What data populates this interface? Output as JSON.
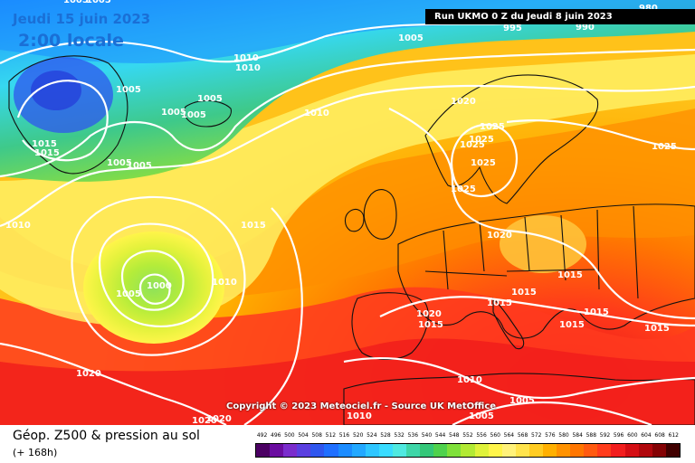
{
  "title": {
    "date": "Jeudi 15 juin 2023",
    "time": "2:00 locale",
    "run": "Run UKMO 0 Z du Jeudi 8 juin 2023"
  },
  "copyright": "Copyright © 2023 Meteociel.fr - Source UK MetOffice",
  "legend": {
    "title": "Géop. Z500 & pression au sol",
    "subtitle": "(+ 168h)",
    "scale_values": [
      "492",
      "496",
      "500",
      "504",
      "508",
      "512",
      "516",
      "520",
      "524",
      "528",
      "532",
      "536",
      "540",
      "544",
      "548",
      "552",
      "556",
      "560",
      "564",
      "568",
      "572",
      "576",
      "580",
      "584",
      "588",
      "592",
      "596",
      "600",
      "604",
      "608",
      "612"
    ],
    "scale_colors": [
      "#4b0063",
      "#6a0ca0",
      "#7a2ccc",
      "#5a3fe0",
      "#2f56ee",
      "#1f6fff",
      "#1b8cff",
      "#22a8ff",
      "#2ec6ff",
      "#39dcff",
      "#4fe9e0",
      "#3ed6a8",
      "#34c779",
      "#4fd24d",
      "#7fe03a",
      "#b2ea34",
      "#dff23a",
      "#fff54a",
      "#fff27a",
      "#ffe44d",
      "#ffcc22",
      "#ffb000",
      "#ff9200",
      "#ff7600",
      "#ff5a10",
      "#ff3c1c",
      "#f21e1e",
      "#d40e14",
      "#b0070c",
      "#840204",
      "#400000"
    ]
  },
  "isobar_labels": [
    {
      "text": "1005"
    },
    {
      "text": "1005"
    },
    {
      "text": "1010"
    },
    {
      "text": "1010"
    },
    {
      "text": "1005"
    },
    {
      "text": "1005"
    },
    {
      "text": "1005"
    },
    {
      "text": "1005"
    },
    {
      "text": "1015"
    },
    {
      "text": "1015"
    },
    {
      "text": "1005"
    },
    {
      "text": "1005"
    },
    {
      "text": "1010"
    },
    {
      "text": "1020"
    },
    {
      "text": "1025"
    },
    {
      "text": "1025"
    },
    {
      "text": "1025"
    },
    {
      "text": "1025"
    },
    {
      "text": "1025"
    },
    {
      "text": "1025"
    },
    {
      "text": "1010"
    },
    {
      "text": "1015"
    },
    {
      "text": "1005"
    },
    {
      "text": "1000"
    },
    {
      "text": "1010"
    },
    {
      "text": "1020"
    },
    {
      "text": "1015"
    },
    {
      "text": "1015"
    },
    {
      "text": "1015"
    },
    {
      "text": "1020"
    },
    {
      "text": "1015"
    },
    {
      "text": "1015"
    },
    {
      "text": "1015"
    },
    {
      "text": "1015"
    },
    {
      "text": "1020"
    },
    {
      "text": "1010"
    },
    {
      "text": "1005"
    },
    {
      "text": "1010"
    },
    {
      "text": "1005"
    },
    {
      "text": "1020"
    },
    {
      "text": "1020"
    },
    {
      "text": "1005"
    },
    {
      "text": "995"
    },
    {
      "text": "990"
    },
    {
      "text": "980"
    }
  ]
}
